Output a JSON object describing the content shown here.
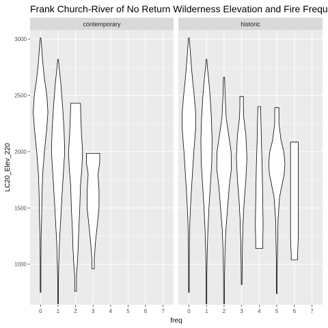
{
  "chart_data": {
    "type": "violin",
    "title": "Frank Church-River of No Return Wilderness Elevation and Fire Frequency F",
    "xlabel": "freq",
    "ylabel": "LC20_Elev_220",
    "x_ticks": [
      0,
      1,
      2,
      3,
      4,
      5,
      6,
      7
    ],
    "y_ticks": [
      1000,
      1500,
      2000,
      2500,
      3000
    ],
    "xlim": [
      -0.6,
      7.6
    ],
    "ylim": [
      640,
      3080
    ],
    "grid": true,
    "colors": {
      "panel_background": "#ebebeb",
      "strip_background": "#d9d9d9",
      "gridline": "#ffffff",
      "violin_fill": "#ffffff",
      "violin_stroke": "#000000"
    },
    "panels": [
      {
        "label": "contemporary",
        "violins": [
          {
            "freq": 0,
            "min": 750,
            "max": 3010,
            "profile": [
              [
                750,
                0.02
              ],
              [
                1000,
                0.02
              ],
              [
                1230,
                0.03
              ],
              [
                1400,
                0.06
              ],
              [
                1600,
                0.08
              ],
              [
                1800,
                0.12
              ],
              [
                2000,
                0.22
              ],
              [
                2200,
                0.35
              ],
              [
                2350,
                0.42
              ],
              [
                2500,
                0.36
              ],
              [
                2650,
                0.22
              ],
              [
                2800,
                0.12
              ],
              [
                2950,
                0.05
              ],
              [
                3010,
                0.02
              ]
            ]
          },
          {
            "freq": 1,
            "min": 650,
            "max": 2820,
            "profile": [
              [
                650,
                0.02
              ],
              [
                850,
                0.02
              ],
              [
                1000,
                0.04
              ],
              [
                1200,
                0.08
              ],
              [
                1400,
                0.15
              ],
              [
                1600,
                0.22
              ],
              [
                1800,
                0.3
              ],
              [
                2000,
                0.38
              ],
              [
                2200,
                0.34
              ],
              [
                2400,
                0.26
              ],
              [
                2600,
                0.16
              ],
              [
                2750,
                0.06
              ],
              [
                2820,
                0.02
              ]
            ]
          },
          {
            "freq": 2,
            "min": 760,
            "max": 2430,
            "profile": [
              [
                760,
                0.05
              ],
              [
                900,
                0.05
              ],
              [
                1000,
                0.1
              ],
              [
                1150,
                0.15
              ],
              [
                1300,
                0.18
              ],
              [
                1500,
                0.24
              ],
              [
                1700,
                0.28
              ],
              [
                1850,
                0.36
              ],
              [
                2000,
                0.4
              ],
              [
                2150,
                0.34
              ],
              [
                2300,
                0.3
              ],
              [
                2430,
                0.28
              ]
            ]
          },
          {
            "freq": 3,
            "min": 960,
            "max": 1985,
            "profile": [
              [
                960,
                0.07
              ],
              [
                1050,
                0.07
              ],
              [
                1200,
                0.14
              ],
              [
                1350,
                0.24
              ],
              [
                1500,
                0.34
              ],
              [
                1650,
                0.34
              ],
              [
                1800,
                0.28
              ],
              [
                1900,
                0.38
              ],
              [
                1985,
                0.38
              ]
            ]
          }
        ]
      },
      {
        "label": "historic",
        "violins": [
          {
            "freq": 0,
            "min": 750,
            "max": 3010,
            "profile": [
              [
                750,
                0.02
              ],
              [
                1000,
                0.02
              ],
              [
                1230,
                0.03
              ],
              [
                1400,
                0.06
              ],
              [
                1600,
                0.12
              ],
              [
                1800,
                0.2
              ],
              [
                2000,
                0.28
              ],
              [
                2200,
                0.38
              ],
              [
                2350,
                0.38
              ],
              [
                2500,
                0.3
              ],
              [
                2650,
                0.2
              ],
              [
                2800,
                0.12
              ],
              [
                2950,
                0.05
              ],
              [
                3010,
                0.02
              ]
            ]
          },
          {
            "freq": 1,
            "min": 650,
            "max": 2820,
            "profile": [
              [
                650,
                0.02
              ],
              [
                900,
                0.02
              ],
              [
                1100,
                0.04
              ],
              [
                1300,
                0.08
              ],
              [
                1500,
                0.14
              ],
              [
                1700,
                0.22
              ],
              [
                1900,
                0.3
              ],
              [
                2100,
                0.32
              ],
              [
                2300,
                0.28
              ],
              [
                2500,
                0.2
              ],
              [
                2650,
                0.12
              ],
              [
                2750,
                0.05
              ],
              [
                2820,
                0.02
              ]
            ]
          },
          {
            "freq": 2,
            "min": 650,
            "max": 2660,
            "profile": [
              [
                650,
                0.02
              ],
              [
                900,
                0.03
              ],
              [
                1100,
                0.05
              ],
              [
                1300,
                0.1
              ],
              [
                1500,
                0.2
              ],
              [
                1700,
                0.3
              ],
              [
                1850,
                0.42
              ],
              [
                2000,
                0.4
              ],
              [
                2150,
                0.26
              ],
              [
                2300,
                0.12
              ],
              [
                2500,
                0.06
              ],
              [
                2660,
                0.03
              ]
            ]
          },
          {
            "freq": 3,
            "min": 820,
            "max": 2490,
            "profile": [
              [
                820,
                0.02
              ],
              [
                1000,
                0.03
              ],
              [
                1200,
                0.05
              ],
              [
                1400,
                0.09
              ],
              [
                1550,
                0.14
              ],
              [
                1750,
                0.24
              ],
              [
                1950,
                0.3
              ],
              [
                2150,
                0.24
              ],
              [
                2300,
                0.12
              ],
              [
                2400,
                0.1
              ],
              [
                2490,
                0.1
              ]
            ]
          },
          {
            "freq": 4,
            "min": 1140,
            "max": 2400,
            "profile": [
              [
                1140,
                0.2
              ],
              [
                1200,
                0.2
              ],
              [
                1350,
                0.22
              ],
              [
                1550,
                0.2
              ],
              [
                1750,
                0.18
              ],
              [
                1900,
                0.16
              ],
              [
                2100,
                0.12
              ],
              [
                2250,
                0.1
              ],
              [
                2400,
                0.08
              ]
            ]
          },
          {
            "freq": 5,
            "min": 740,
            "max": 2390,
            "profile": [
              [
                740,
                0.02
              ],
              [
                950,
                0.02
              ],
              [
                1150,
                0.04
              ],
              [
                1400,
                0.07
              ],
              [
                1600,
                0.16
              ],
              [
                1800,
                0.42
              ],
              [
                1900,
                0.46
              ],
              [
                2000,
                0.4
              ],
              [
                2100,
                0.24
              ],
              [
                2250,
                0.12
              ],
              [
                2390,
                0.12
              ]
            ]
          },
          {
            "freq": 6,
            "min": 1040,
            "max": 2085,
            "profile": [
              [
                1040,
                0.18
              ],
              [
                1100,
                0.18
              ],
              [
                1150,
                0.2
              ],
              [
                1250,
                0.22
              ],
              [
                1500,
                0.22
              ],
              [
                1800,
                0.22
              ],
              [
                2000,
                0.22
              ],
              [
                2085,
                0.22
              ]
            ]
          }
        ]
      }
    ]
  }
}
